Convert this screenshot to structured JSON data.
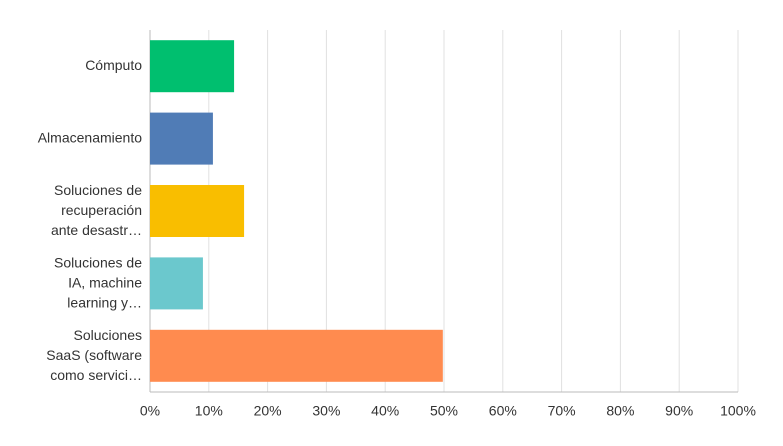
{
  "chart_data": {
    "type": "bar",
    "orientation": "horizontal",
    "categories": [
      [
        "Cómputo"
      ],
      [
        "Almacenamiento"
      ],
      [
        "Soluciones de",
        "recuperación",
        "ante desastr…"
      ],
      [
        "Soluciones de",
        "IA, machine",
        "learning y…"
      ],
      [
        "Soluciones",
        "SaaS (software",
        "como servici…"
      ]
    ],
    "values": [
      14.3,
      10.7,
      16.0,
      9.0,
      49.8
    ],
    "colors": [
      "#00bf6f",
      "#507cb6",
      "#f9be00",
      "#6bc8cd",
      "#ff8b4f"
    ],
    "xlim": [
      0,
      100
    ],
    "xticks": [
      {
        "value": 0,
        "label": "0%"
      },
      {
        "value": 10,
        "label": "10%"
      },
      {
        "value": 20,
        "label": "20%"
      },
      {
        "value": 30,
        "label": "30%"
      },
      {
        "value": 40,
        "label": "40%"
      },
      {
        "value": 50,
        "label": "50%"
      },
      {
        "value": 60,
        "label": "60%"
      },
      {
        "value": 70,
        "label": "70%"
      },
      {
        "value": 80,
        "label": "80%"
      },
      {
        "value": 90,
        "label": "90%"
      },
      {
        "value": 100,
        "label": "100%"
      }
    ],
    "grid": true
  }
}
